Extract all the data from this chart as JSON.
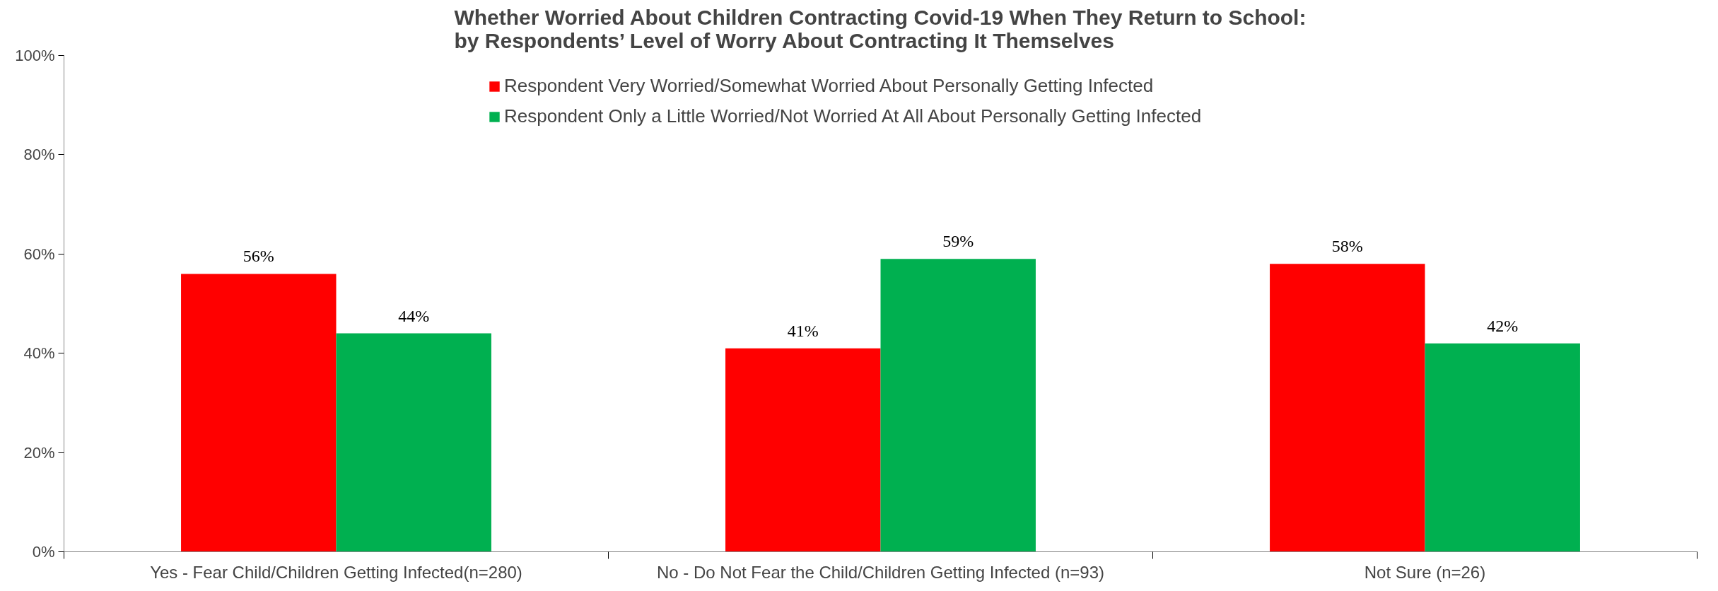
{
  "chart_data": {
    "type": "bar",
    "title": "Whether Worried About Children Contracting Covid-19 When They Return to School:\nby Respondents’ Level of Worry About Contracting It Themselves",
    "categories": [
      "Yes - Fear Child/Children Getting Infected(n=280)",
      "No - Do Not Fear the Child/Children Getting Infected (n=93)",
      "Not Sure (n=26)"
    ],
    "series": [
      {
        "name": "Respondent Very Worried/Somewhat Worried About Personally Getting Infected",
        "color": "#ff0000",
        "values": [
          56,
          41,
          58
        ],
        "value_labels": [
          "56%",
          "41%",
          "58%"
        ]
      },
      {
        "name": "Respondent Only a Little Worried/Not Worried At All About Personally Getting Infected",
        "color": "#00b050",
        "values": [
          44,
          59,
          42
        ],
        "value_labels": [
          "44%",
          "59%",
          "42%"
        ]
      }
    ],
    "ylim": [
      0,
      100
    ],
    "yticks": [
      {
        "value": 0,
        "label": "0%"
      },
      {
        "value": 20,
        "label": "20%"
      },
      {
        "value": 40,
        "label": "40%"
      },
      {
        "value": 60,
        "label": "60%"
      },
      {
        "value": 80,
        "label": "80%"
      },
      {
        "value": 100,
        "label": "100%"
      }
    ],
    "grid": false,
    "legend": "top right"
  }
}
